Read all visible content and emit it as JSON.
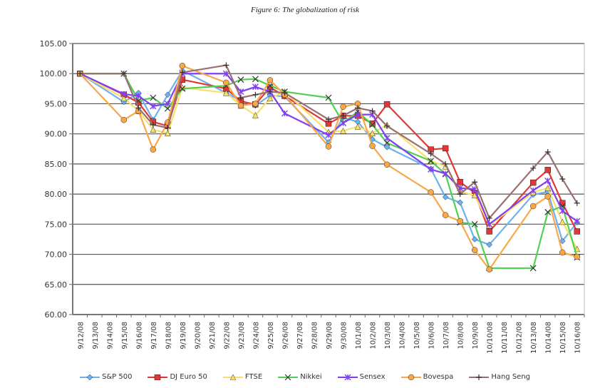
{
  "figure_title": "Figure 6: The globalization of risk",
  "chart_data": {
    "type": "line",
    "title": "Figure 6: The globalization of risk",
    "xlabel": "",
    "ylabel": "",
    "ylim": [
      60,
      105
    ],
    "yticks": [
      "60.00",
      "65.00",
      "70.00",
      "75.00",
      "80.00",
      "85.00",
      "90.00",
      "95.00",
      "100.00",
      "105.00"
    ],
    "grid": true,
    "legend_position": "bottom",
    "categories": [
      "9/12/08",
      "9/13/08",
      "9/14/08",
      "9/15/08",
      "9/16/08",
      "9/17/08",
      "9/18/08",
      "9/19/08",
      "9/20/08",
      "9/21/08",
      "9/22/08",
      "9/23/08",
      "9/24/08",
      "9/25/08",
      "9/26/08",
      "9/27/08",
      "9/28/08",
      "9/29/08",
      "9/30/08",
      "10/1/08",
      "10/2/08",
      "10/3/08",
      "10/4/08",
      "10/5/08",
      "10/6/08",
      "10/7/08",
      "10/8/08",
      "10/9/08",
      "10/10/08",
      "10/11/08",
      "10/12/08",
      "10/13/08",
      "10/14/08",
      "10/15/08",
      "10/16/08"
    ],
    "series": [
      {
        "name": "S&P 500",
        "color": "#6fb0f0",
        "marker": "diamond",
        "values": [
          100,
          null,
          null,
          95.3,
          96.8,
          92.3,
          96.5,
          100.5,
          null,
          null,
          96.8,
          95.5,
          94.7,
          96.4,
          96.2,
          null,
          null,
          88.6,
          92.7,
          92.0,
          89.1,
          87.8,
          null,
          null,
          84.2,
          79.5,
          78.6,
          72.5,
          71.6,
          null,
          null,
          79.9,
          80.4,
          72.2,
          75.3
        ]
      },
      {
        "name": "DJ Euro 50",
        "color": "#e03838",
        "marker": "square",
        "values": [
          100,
          null,
          null,
          96.5,
          95.2,
          92.0,
          91.3,
          99.0,
          null,
          null,
          97.5,
          95.4,
          94.9,
          97.7,
          96.3,
          null,
          null,
          91.7,
          93.0,
          93.0,
          91.7,
          94.9,
          null,
          null,
          87.4,
          87.6,
          82.0,
          80.2,
          73.8,
          null,
          null,
          81.9,
          84.0,
          78.5,
          73.8
        ]
      },
      {
        "name": "FTSE",
        "color": "#f8e070",
        "marker": "triangle",
        "values": [
          100,
          null,
          null,
          95.9,
          93.8,
          90.7,
          90.1,
          97.7,
          null,
          null,
          96.8,
          94.7,
          93.1,
          95.9,
          97.0,
          null,
          null,
          90.3,
          90.5,
          91.2,
          90.1,
          91.5,
          null,
          null,
          85.5,
          84.6,
          80.4,
          79.8,
          74.8,
          null,
          null,
          80.3,
          81.0,
          75.4,
          70.9
        ]
      },
      {
        "name": "Nikkei",
        "color": "#50d050",
        "marker": "x",
        "values": [
          100,
          null,
          null,
          100,
          95.5,
          96.0,
          94.2,
          97.5,
          null,
          null,
          98.0,
          99.0,
          99.1,
          98.0,
          97.0,
          null,
          null,
          96.0,
          91.8,
          93.7,
          91.5,
          88.5,
          null,
          null,
          85.5,
          83.3,
          75.3,
          75.0,
          67.7,
          null,
          null,
          67.7,
          77.0,
          78.0,
          69.5
        ]
      },
      {
        "name": "Sensex",
        "color": "#8040f0",
        "marker": "star",
        "values": [
          100,
          null,
          null,
          96.6,
          96.3,
          94.6,
          95.0,
          100.0,
          null,
          null,
          100.0,
          97.0,
          97.8,
          97.0,
          93.4,
          null,
          null,
          89.8,
          91.8,
          93.2,
          93.2,
          89.3,
          null,
          null,
          84.1,
          83.4,
          81.0,
          80.8,
          75.0,
          null,
          null,
          80.6,
          82.2,
          77.2,
          75.5
        ]
      },
      {
        "name": "Bovespa",
        "color": "#f8a848",
        "marker": "circle",
        "values": [
          100,
          null,
          null,
          92.3,
          93.8,
          87.4,
          91.9,
          101.3,
          null,
          null,
          98.5,
          94.7,
          95.0,
          98.9,
          96.5,
          null,
          null,
          87.9,
          94.5,
          95.0,
          88.0,
          84.9,
          null,
          null,
          80.3,
          76.5,
          75.5,
          70.7,
          67.5,
          null,
          null,
          78.0,
          79.6,
          70.3,
          69.6
        ]
      },
      {
        "name": "Hang Seng",
        "color": "#9a6f6f",
        "marker": "plus",
        "values": [
          100,
          null,
          null,
          100,
          94.3,
          91.5,
          91.0,
          100.2,
          null,
          null,
          101.4,
          96.0,
          96.5,
          97.0,
          96.8,
          null,
          null,
          92.4,
          93.0,
          94.3,
          93.8,
          91.3,
          null,
          null,
          86.7,
          85.0,
          80.0,
          82.0,
          76.0,
          null,
          null,
          84.3,
          87.0,
          82.5,
          78.5
        ]
      }
    ]
  }
}
